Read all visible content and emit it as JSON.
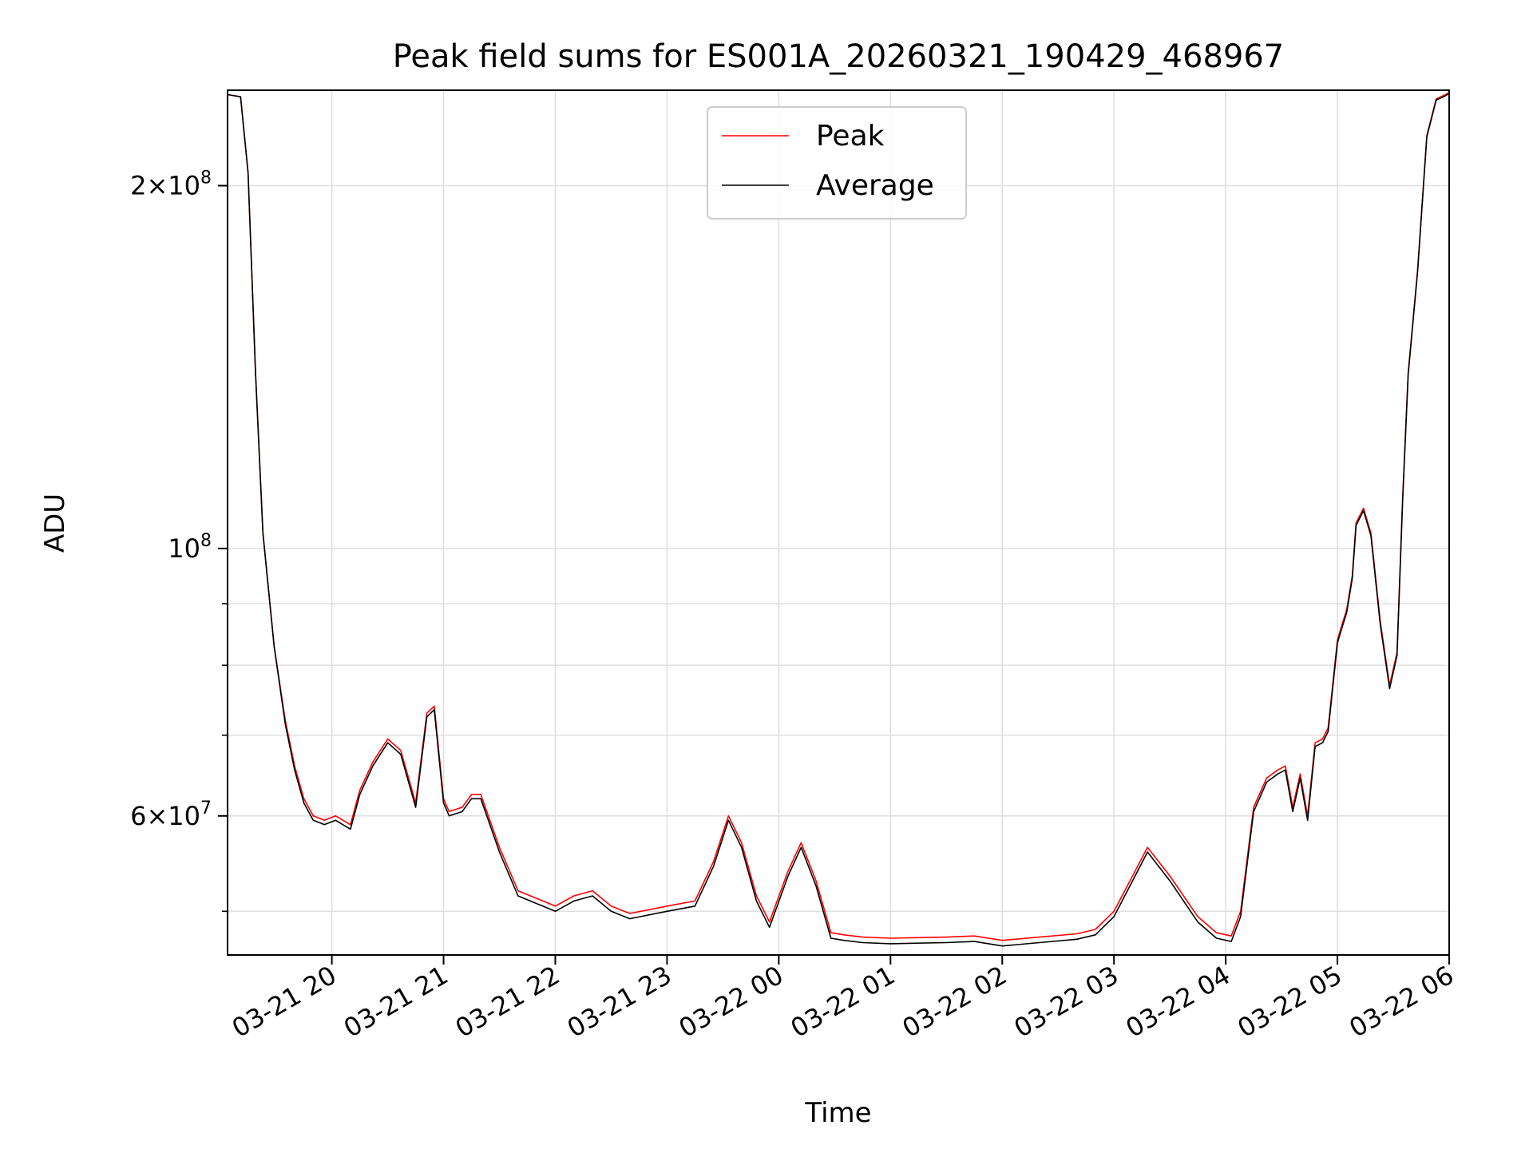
{
  "chart_data": {
    "type": "line",
    "title": "Peak field sums for ES001A_20260321_190429_468967",
    "xlabel": "Time",
    "ylabel": "ADU",
    "y_scale": "log",
    "ylim": [
      46000000,
      240000000
    ],
    "xlim": [
      "2026-03-21 19:04",
      "2026-03-22 06:00"
    ],
    "grid": true,
    "legend_position": "top-center",
    "x_ticks": [
      {
        "t": "2026-03-21 20:00",
        "label": "03-21 20"
      },
      {
        "t": "2026-03-21 21:00",
        "label": "03-21 21"
      },
      {
        "t": "2026-03-21 22:00",
        "label": "03-21 22"
      },
      {
        "t": "2026-03-21 23:00",
        "label": "03-21 23"
      },
      {
        "t": "2026-03-22 00:00",
        "label": "03-22 00"
      },
      {
        "t": "2026-03-22 01:00",
        "label": "03-22 01"
      },
      {
        "t": "2026-03-22 02:00",
        "label": "03-22 02"
      },
      {
        "t": "2026-03-22 03:00",
        "label": "03-22 03"
      },
      {
        "t": "2026-03-22 04:00",
        "label": "03-22 04"
      },
      {
        "t": "2026-03-22 05:00",
        "label": "03-22 05"
      },
      {
        "t": "2026-03-22 06:00",
        "label": "03-22 06"
      }
    ],
    "y_ticks_major": [
      {
        "v": 200000000,
        "mantissa": "2",
        "exp": "8"
      },
      {
        "v": 100000000,
        "mantissa": "",
        "exp": "8"
      },
      {
        "v": 60000000,
        "mantissa": "6",
        "exp": "7"
      }
    ],
    "y_ticks_minor": [
      50000000,
      70000000,
      80000000,
      90000000
    ],
    "series": [
      {
        "name": "Peak",
        "color": "#ff0000",
        "x": [
          "2026-03-21 19:04",
          "2026-03-21 19:11",
          "2026-03-21 19:15",
          "2026-03-21 19:19",
          "2026-03-21 19:23",
          "2026-03-21 19:29",
          "2026-03-21 19:35",
          "2026-03-21 19:40",
          "2026-03-21 19:45",
          "2026-03-21 19:50",
          "2026-03-21 19:56",
          "2026-03-21 20:02",
          "2026-03-21 20:10",
          "2026-03-21 20:15",
          "2026-03-21 20:22",
          "2026-03-21 20:30",
          "2026-03-21 20:37",
          "2026-03-21 20:45",
          "2026-03-21 20:51",
          "2026-03-21 20:55",
          "2026-03-21 21:00",
          "2026-03-21 21:03",
          "2026-03-21 21:10",
          "2026-03-21 21:15",
          "2026-03-21 21:20",
          "2026-03-21 21:30",
          "2026-03-21 21:40",
          "2026-03-21 22:00",
          "2026-03-21 22:10",
          "2026-03-21 22:20",
          "2026-03-21 22:30",
          "2026-03-21 22:40",
          "2026-03-21 23:00",
          "2026-03-21 23:15",
          "2026-03-21 23:25",
          "2026-03-21 23:33",
          "2026-03-21 23:40",
          "2026-03-21 23:48",
          "2026-03-21 23:55",
          "2026-03-22 00:05",
          "2026-03-22 00:12",
          "2026-03-22 00:20",
          "2026-03-22 00:28",
          "2026-03-22 00:35",
          "2026-03-22 00:45",
          "2026-03-22 01:00",
          "2026-03-22 01:30",
          "2026-03-22 01:45",
          "2026-03-22 02:00",
          "2026-03-22 02:20",
          "2026-03-22 02:40",
          "2026-03-22 02:50",
          "2026-03-22 03:00",
          "2026-03-22 03:10",
          "2026-03-22 03:18",
          "2026-03-22 03:30",
          "2026-03-22 03:45",
          "2026-03-22 03:55",
          "2026-03-22 04:03",
          "2026-03-22 04:08",
          "2026-03-22 04:15",
          "2026-03-22 04:22",
          "2026-03-22 04:28",
          "2026-03-22 04:32",
          "2026-03-22 04:36",
          "2026-03-22 04:40",
          "2026-03-22 04:44",
          "2026-03-22 04:48",
          "2026-03-22 04:52",
          "2026-03-22 04:55",
          "2026-03-22 05:00",
          "2026-03-22 05:02",
          "2026-03-22 05:05",
          "2026-03-22 05:08",
          "2026-03-22 05:10",
          "2026-03-22 05:14",
          "2026-03-22 05:18",
          "2026-03-22 05:23",
          "2026-03-22 05:28",
          "2026-03-22 05:32",
          "2026-03-22 05:35",
          "2026-03-22 05:38",
          "2026-03-22 05:43",
          "2026-03-22 05:48",
          "2026-03-22 05:53",
          "2026-03-22 05:58",
          "2026-03-22 06:00"
        ],
        "y": [
          238000000,
          237000000,
          205000000,
          140000000,
          103000000,
          83000000,
          72000000,
          66000000,
          62000000,
          60000000,
          59500000,
          60000000,
          59000000,
          63000000,
          66500000,
          69500000,
          68000000,
          61500000,
          73000000,
          74000000,
          62000000,
          60500000,
          61000000,
          62500000,
          62500000,
          56500000,
          52000000,
          50500000,
          51500000,
          52000000,
          50500000,
          49800000,
          50500000,
          51000000,
          55000000,
          60000000,
          57000000,
          51500000,
          49000000,
          54000000,
          57000000,
          53000000,
          48000000,
          47800000,
          47600000,
          47500000,
          47600000,
          47700000,
          47300000,
          47600000,
          47900000,
          48300000,
          50000000,
          53500000,
          56500000,
          53500000,
          49500000,
          48000000,
          47700000,
          50000000,
          61000000,
          64500000,
          65500000,
          66000000,
          61000000,
          65000000,
          60000000,
          69000000,
          69500000,
          71000000,
          84000000,
          86000000,
          89000000,
          95000000,
          105000000,
          108000000,
          103000000,
          87000000,
          77000000,
          82000000,
          110000000,
          140000000,
          170000000,
          220000000,
          236000000,
          238000000,
          239000000
        ]
      },
      {
        "name": "Average",
        "color": "#000000",
        "x": [
          "2026-03-21 19:04",
          "2026-03-21 19:11",
          "2026-03-21 19:15",
          "2026-03-21 19:19",
          "2026-03-21 19:23",
          "2026-03-21 19:29",
          "2026-03-21 19:35",
          "2026-03-21 19:40",
          "2026-03-21 19:45",
          "2026-03-21 19:50",
          "2026-03-21 19:56",
          "2026-03-21 20:02",
          "2026-03-21 20:10",
          "2026-03-21 20:15",
          "2026-03-21 20:22",
          "2026-03-21 20:30",
          "2026-03-21 20:37",
          "2026-03-21 20:45",
          "2026-03-21 20:51",
          "2026-03-21 20:55",
          "2026-03-21 21:00",
          "2026-03-21 21:03",
          "2026-03-21 21:10",
          "2026-03-21 21:15",
          "2026-03-21 21:20",
          "2026-03-21 21:30",
          "2026-03-21 21:40",
          "2026-03-21 22:00",
          "2026-03-21 22:10",
          "2026-03-21 22:20",
          "2026-03-21 22:30",
          "2026-03-21 22:40",
          "2026-03-21 23:00",
          "2026-03-21 23:15",
          "2026-03-21 23:25",
          "2026-03-21 23:33",
          "2026-03-21 23:40",
          "2026-03-21 23:48",
          "2026-03-21 23:55",
          "2026-03-22 00:05",
          "2026-03-22 00:12",
          "2026-03-22 00:20",
          "2026-03-22 00:28",
          "2026-03-22 00:35",
          "2026-03-22 00:45",
          "2026-03-22 01:00",
          "2026-03-22 01:30",
          "2026-03-22 01:45",
          "2026-03-22 02:00",
          "2026-03-22 02:20",
          "2026-03-22 02:40",
          "2026-03-22 02:50",
          "2026-03-22 03:00",
          "2026-03-22 03:10",
          "2026-03-22 03:18",
          "2026-03-22 03:30",
          "2026-03-22 03:45",
          "2026-03-22 03:55",
          "2026-03-22 04:03",
          "2026-03-22 04:08",
          "2026-03-22 04:15",
          "2026-03-22 04:22",
          "2026-03-22 04:28",
          "2026-03-22 04:32",
          "2026-03-22 04:36",
          "2026-03-22 04:40",
          "2026-03-22 04:44",
          "2026-03-22 04:48",
          "2026-03-22 04:52",
          "2026-03-22 04:55",
          "2026-03-22 05:00",
          "2026-03-22 05:02",
          "2026-03-22 05:05",
          "2026-03-22 05:08",
          "2026-03-22 05:10",
          "2026-03-22 05:14",
          "2026-03-22 05:18",
          "2026-03-22 05:23",
          "2026-03-22 05:28",
          "2026-03-22 05:32",
          "2026-03-22 05:35",
          "2026-03-22 05:38",
          "2026-03-22 05:43",
          "2026-03-22 05:48",
          "2026-03-22 05:53",
          "2026-03-22 05:58",
          "2026-03-22 06:00"
        ],
        "y": [
          238000000,
          237000000,
          205000000,
          140000000,
          103000000,
          83000000,
          71500000,
          65500000,
          61500000,
          59500000,
          59000000,
          59500000,
          58500000,
          62500000,
          66000000,
          69000000,
          67500000,
          61000000,
          72500000,
          73500000,
          61500000,
          60000000,
          60500000,
          62000000,
          62000000,
          56000000,
          51500000,
          50000000,
          51000000,
          51500000,
          50000000,
          49300000,
          50000000,
          50500000,
          54500000,
          59500000,
          56500000,
          51000000,
          48500000,
          53500000,
          56500000,
          52500000,
          47500000,
          47300000,
          47100000,
          47000000,
          47100000,
          47200000,
          46800000,
          47100000,
          47400000,
          47800000,
          49500000,
          53000000,
          56000000,
          53000000,
          49000000,
          47500000,
          47200000,
          49500000,
          60500000,
          64000000,
          65000000,
          65500000,
          60500000,
          64500000,
          59500000,
          68500000,
          69000000,
          70500000,
          83500000,
          85500000,
          88500000,
          94500000,
          104500000,
          107500000,
          102500000,
          86500000,
          76500000,
          81500000,
          109500000,
          139500000,
          169500000,
          219500000,
          235500000,
          237500000,
          238500000
        ]
      }
    ]
  }
}
